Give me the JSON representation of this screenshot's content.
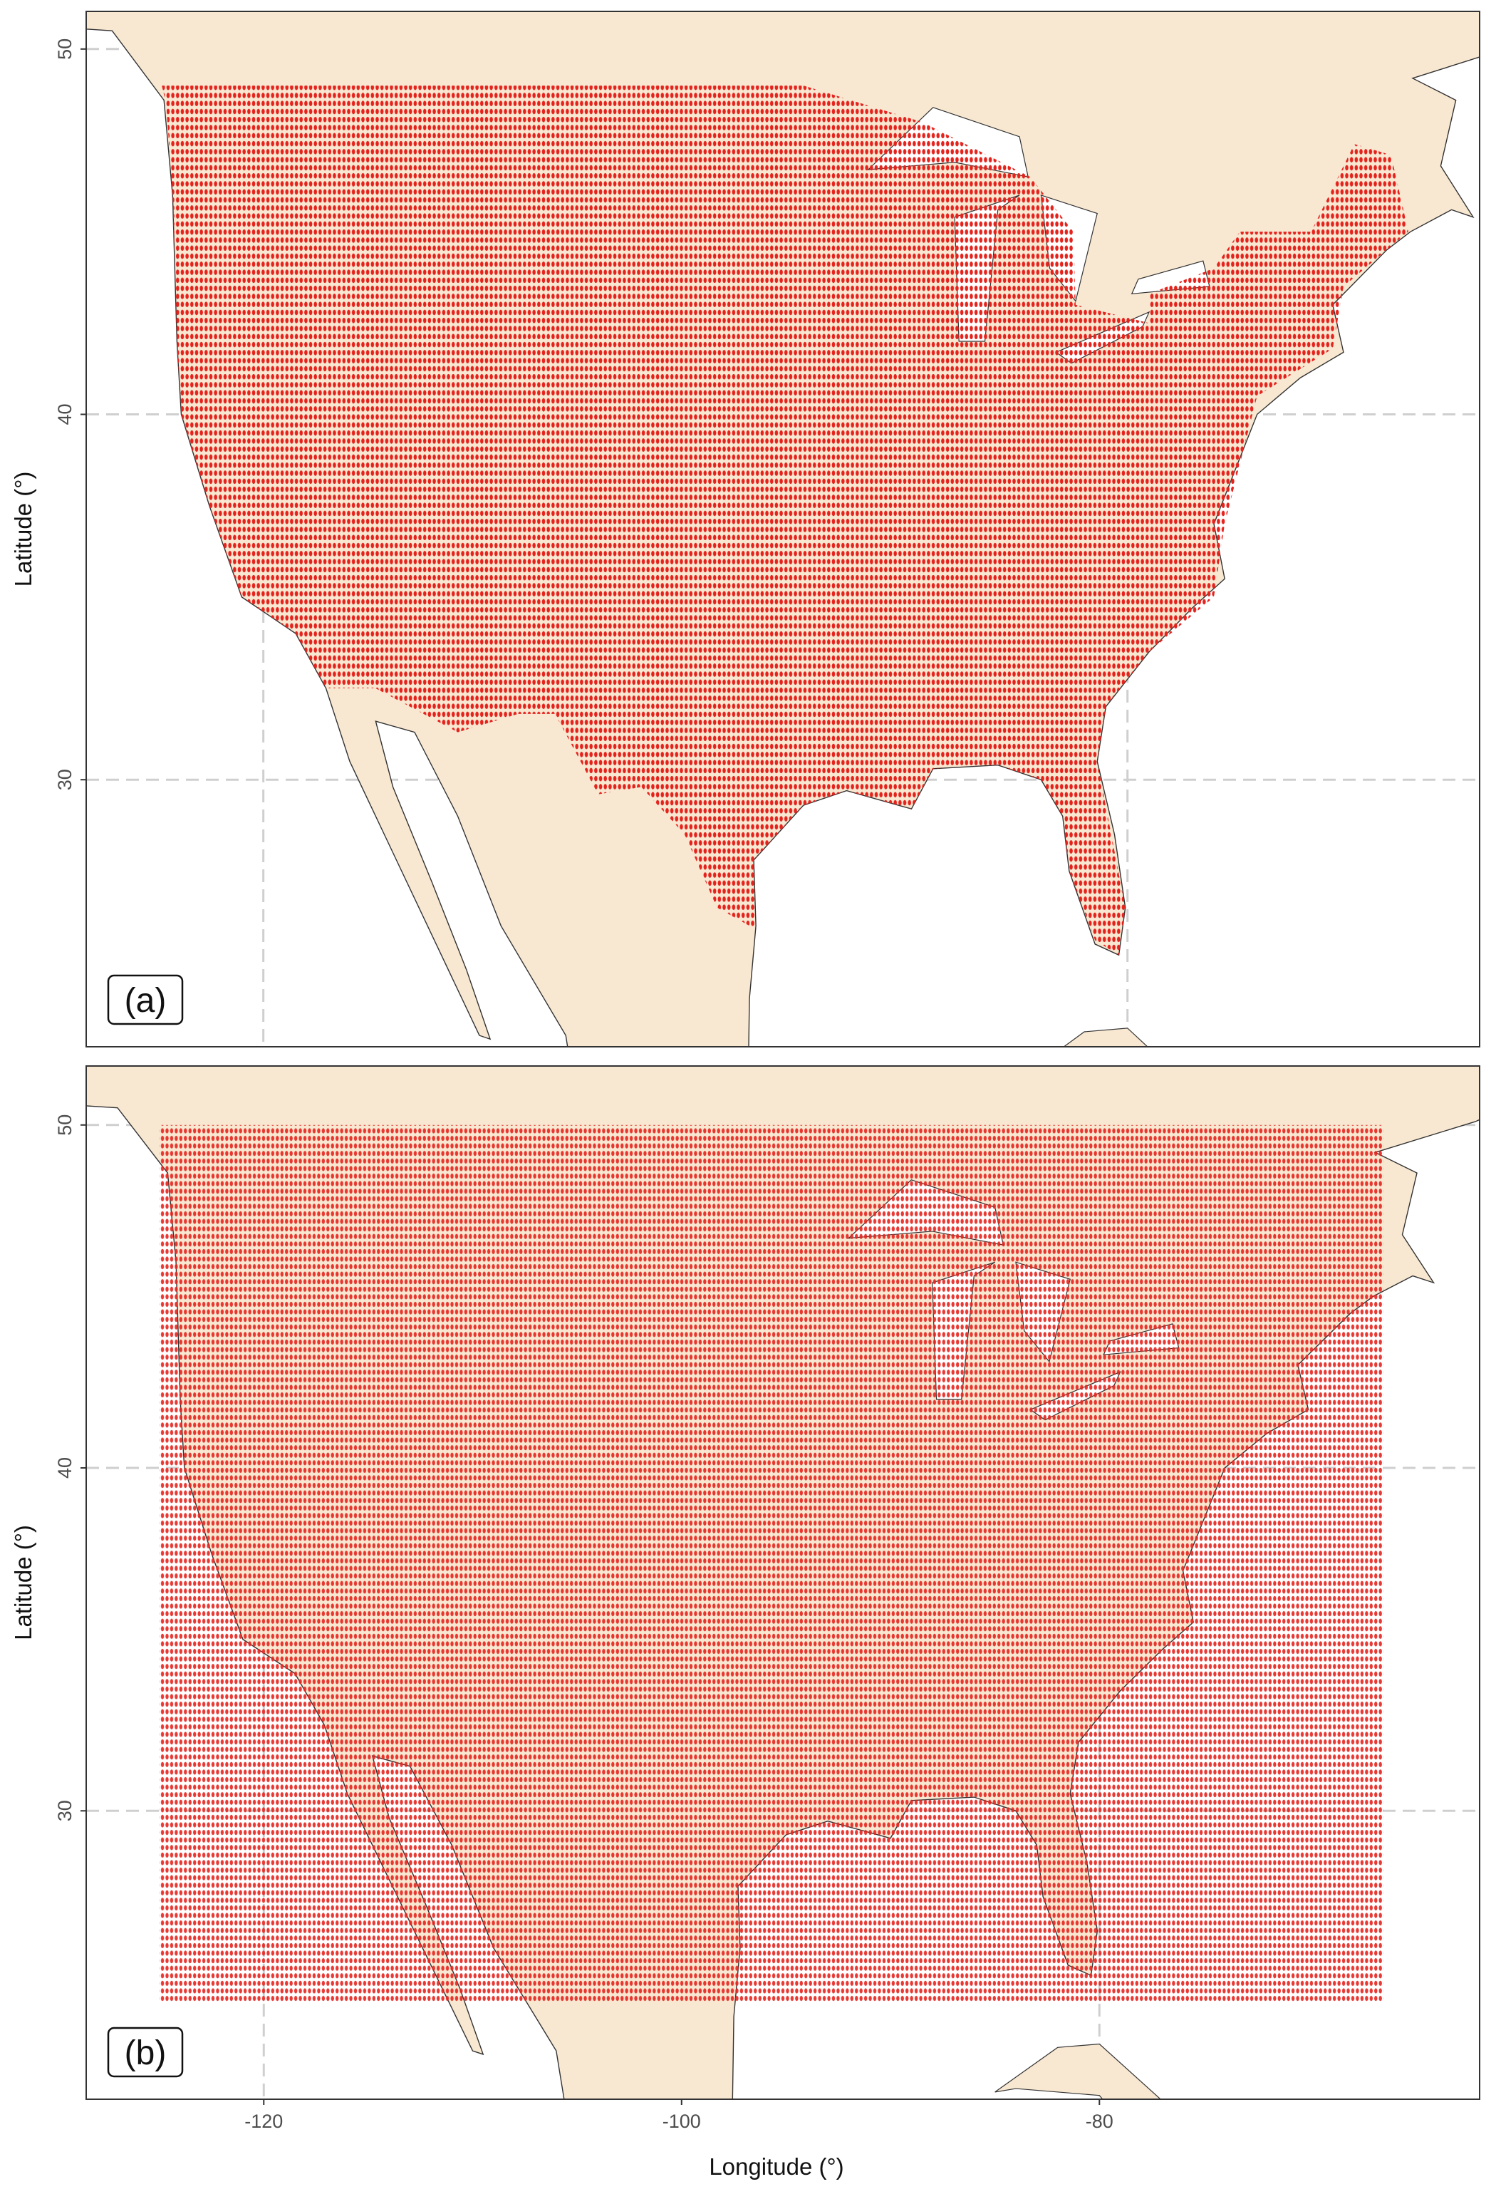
{
  "y_label": "Latitude (°)",
  "x_label": "Longitude (°)",
  "panels": [
    {
      "label": "(a)",
      "xlim": [
        -128.2,
        -63.7
      ],
      "ylim": [
        22.69,
        51.03
      ],
      "xticks": [
        -120,
        -100,
        -80
      ],
      "yticks": [
        50,
        40,
        30
      ]
    },
    {
      "label": "(b)",
      "xlim": [
        -128.5,
        -61.8
      ],
      "ylim": [
        21.59,
        51.72
      ],
      "xticks": [
        -120,
        -100,
        -80
      ],
      "yticks": [
        50,
        40,
        30
      ]
    }
  ]
}
